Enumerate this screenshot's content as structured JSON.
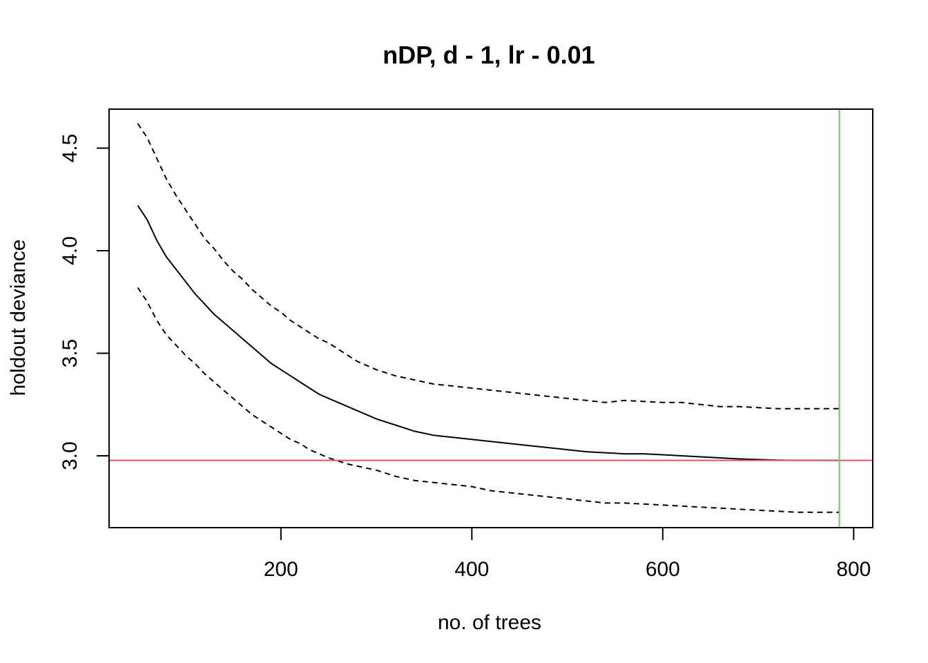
{
  "chart_data": {
    "type": "line",
    "title": "nDP, d - 1, lr - 0.01",
    "xlabel": "no. of trees",
    "ylabel": "holdout deviance",
    "xlim": [
      20,
      820
    ],
    "ylim": [
      2.65,
      4.69
    ],
    "xticks": [
      200,
      400,
      600,
      800
    ],
    "yticks": [
      3.0,
      3.5,
      4.0,
      4.5
    ],
    "ytick_labels": [
      "3.0",
      "3.5",
      "4.0",
      "4.5"
    ],
    "grid": false,
    "legend": "none",
    "colors": {
      "mean": "#000000",
      "bounds": "#000000",
      "reference_hline": "#DF536B",
      "optimal_vline": "#61D04F",
      "frame": "#000000"
    },
    "reference_hline_y": 2.978,
    "optimal_vline_x": 785,
    "series": [
      {
        "style": "solid",
        "x": [
          50,
          60,
          70,
          80,
          90,
          100,
          110,
          120,
          130,
          140,
          150,
          160,
          170,
          180,
          190,
          200,
          210,
          220,
          230,
          240,
          250,
          260,
          270,
          280,
          290,
          300,
          320,
          340,
          360,
          380,
          400,
          420,
          440,
          460,
          480,
          500,
          520,
          540,
          560,
          580,
          600,
          620,
          640,
          660,
          680,
          700,
          720,
          740,
          760,
          785
        ],
        "y": [
          4.22,
          4.15,
          4.05,
          3.97,
          3.91,
          3.85,
          3.79,
          3.74,
          3.69,
          3.65,
          3.61,
          3.57,
          3.53,
          3.49,
          3.45,
          3.42,
          3.39,
          3.36,
          3.33,
          3.3,
          3.28,
          3.26,
          3.24,
          3.22,
          3.2,
          3.18,
          3.15,
          3.12,
          3.1,
          3.09,
          3.08,
          3.07,
          3.06,
          3.05,
          3.04,
          3.03,
          3.02,
          3.015,
          3.01,
          3.01,
          3.005,
          3.0,
          2.995,
          2.99,
          2.985,
          2.982,
          2.979,
          2.978,
          2.978,
          2.978
        ]
      },
      {
        "style": "dashed",
        "x": [
          50,
          60,
          70,
          80,
          90,
          100,
          110,
          120,
          130,
          140,
          150,
          160,
          170,
          180,
          190,
          200,
          210,
          220,
          230,
          240,
          250,
          260,
          270,
          280,
          290,
          300,
          320,
          340,
          360,
          380,
          400,
          420,
          440,
          460,
          480,
          500,
          520,
          540,
          560,
          580,
          600,
          620,
          640,
          660,
          680,
          700,
          720,
          740,
          760,
          785
        ],
        "y": [
          4.62,
          4.55,
          4.45,
          4.35,
          4.27,
          4.2,
          4.13,
          4.06,
          4.01,
          3.95,
          3.9,
          3.86,
          3.81,
          3.77,
          3.73,
          3.7,
          3.66,
          3.63,
          3.6,
          3.57,
          3.55,
          3.52,
          3.49,
          3.46,
          3.44,
          3.42,
          3.39,
          3.37,
          3.35,
          3.34,
          3.33,
          3.32,
          3.31,
          3.3,
          3.29,
          3.28,
          3.27,
          3.26,
          3.27,
          3.265,
          3.26,
          3.26,
          3.25,
          3.24,
          3.24,
          3.235,
          3.23,
          3.23,
          3.23,
          3.23
        ]
      },
      {
        "style": "dashed",
        "x": [
          50,
          60,
          70,
          80,
          90,
          100,
          110,
          120,
          130,
          140,
          150,
          160,
          170,
          180,
          190,
          200,
          210,
          220,
          230,
          240,
          250,
          260,
          270,
          280,
          290,
          300,
          320,
          340,
          360,
          380,
          400,
          420,
          440,
          460,
          480,
          500,
          520,
          540,
          560,
          580,
          600,
          620,
          640,
          660,
          680,
          700,
          720,
          740,
          760,
          785
        ],
        "y": [
          3.82,
          3.75,
          3.66,
          3.59,
          3.54,
          3.49,
          3.45,
          3.4,
          3.36,
          3.32,
          3.28,
          3.24,
          3.2,
          3.17,
          3.14,
          3.11,
          3.08,
          3.06,
          3.03,
          3.01,
          2.99,
          2.975,
          2.96,
          2.95,
          2.94,
          2.93,
          2.9,
          2.88,
          2.87,
          2.86,
          2.85,
          2.83,
          2.82,
          2.81,
          2.8,
          2.79,
          2.78,
          2.77,
          2.77,
          2.765,
          2.76,
          2.755,
          2.75,
          2.745,
          2.74,
          2.735,
          2.73,
          2.725,
          2.725,
          2.725
        ]
      }
    ]
  }
}
